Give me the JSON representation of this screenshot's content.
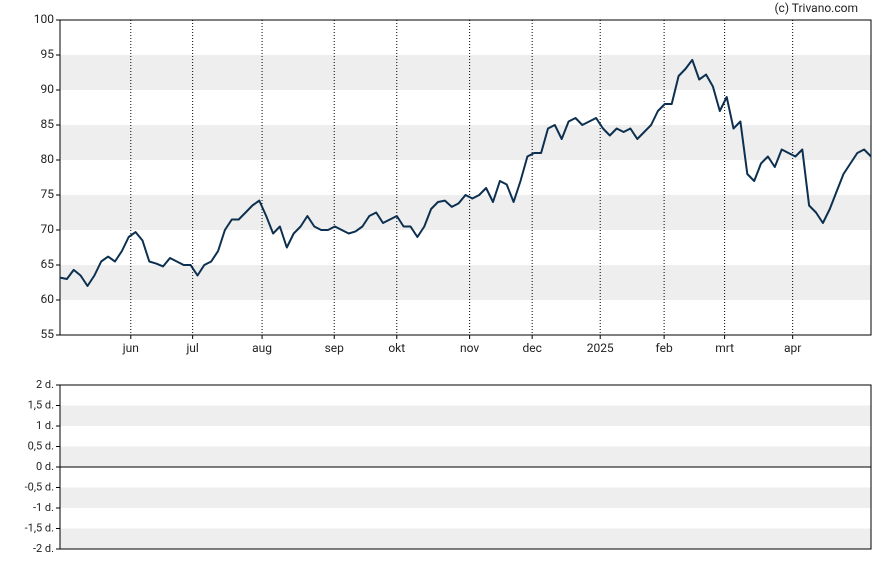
{
  "watermark": "(c) Trivano.com",
  "chart_data": [
    {
      "type": "line",
      "series": [
        {
          "color": "#0d3050",
          "values": [
            63.2,
            63,
            64.3,
            63.5,
            62,
            63.5,
            65.5,
            66.2,
            65.5,
            67,
            69,
            69.7,
            68.5,
            65.5,
            65.2,
            64.8,
            66,
            65.5,
            65,
            65,
            63.5,
            65,
            65.5,
            67,
            70,
            71.5,
            71.5,
            72.5,
            73.5,
            74.2,
            72,
            69.5,
            70.5,
            67.5,
            69.5,
            70.5,
            72,
            70.5,
            70,
            70,
            70.5,
            70,
            69.5,
            69.8,
            70.5,
            72,
            72.5,
            71,
            71.5,
            72,
            70.5,
            70.5,
            69,
            70.5,
            73,
            74,
            74.2,
            73.3,
            73.8,
            75,
            74.5,
            75,
            76,
            74,
            77,
            76.5,
            74,
            77,
            80.5,
            81,
            81,
            84.5,
            85,
            83,
            85.5,
            86,
            85,
            85.5,
            86,
            84.5,
            83.5,
            84.5,
            84,
            84.5,
            83,
            84,
            85,
            87,
            88,
            88,
            92,
            93,
            94.3,
            91.5,
            92.2,
            90.5,
            87,
            89,
            84.5,
            85.5,
            78,
            77,
            79.5,
            80.5,
            79,
            81.5,
            81,
            80.5,
            81.5,
            73.5,
            72.5,
            71,
            73,
            75.5,
            78,
            79.5,
            81,
            81.5,
            80.5
          ]
        }
      ],
      "xlim": [
        0,
        118
      ],
      "xticks": [
        {
          "value": 10.3,
          "label": "jun"
        },
        {
          "value": 19.3,
          "label": "jul"
        },
        {
          "value": 29.4,
          "label": "aug"
        },
        {
          "value": 39.9,
          "label": "sep"
        },
        {
          "value": 49,
          "label": "okt"
        },
        {
          "value": 59.6,
          "label": "nov"
        },
        {
          "value": 68.7,
          "label": "dec"
        },
        {
          "value": 78.6,
          "label": "2025"
        },
        {
          "value": 87.9,
          "label": "feb"
        },
        {
          "value": 96.7,
          "label": "mrt"
        },
        {
          "value": 106.6,
          "label": "apr"
        }
      ],
      "ylim": [
        55,
        100
      ],
      "yticks": [
        55,
        60,
        65,
        70,
        75,
        80,
        85,
        90,
        95,
        100
      ],
      "grid": true
    },
    {
      "type": "line",
      "series": [],
      "ylim": [
        -2,
        2
      ],
      "yticks": [
        {
          "value": -2,
          "label": "-2 d."
        },
        {
          "value": -1.5,
          "label": "-1,5 d."
        },
        {
          "value": -1,
          "label": "-1 d."
        },
        {
          "value": -0.5,
          "label": "-0,5 d."
        },
        {
          "value": 0,
          "label": "0 d."
        },
        {
          "value": 0.5,
          "label": "0,5 d."
        },
        {
          "value": 1,
          "label": "1 d."
        },
        {
          "value": 1.5,
          "label": "1,5 d."
        },
        {
          "value": 2,
          "label": "2 d."
        }
      ]
    }
  ]
}
